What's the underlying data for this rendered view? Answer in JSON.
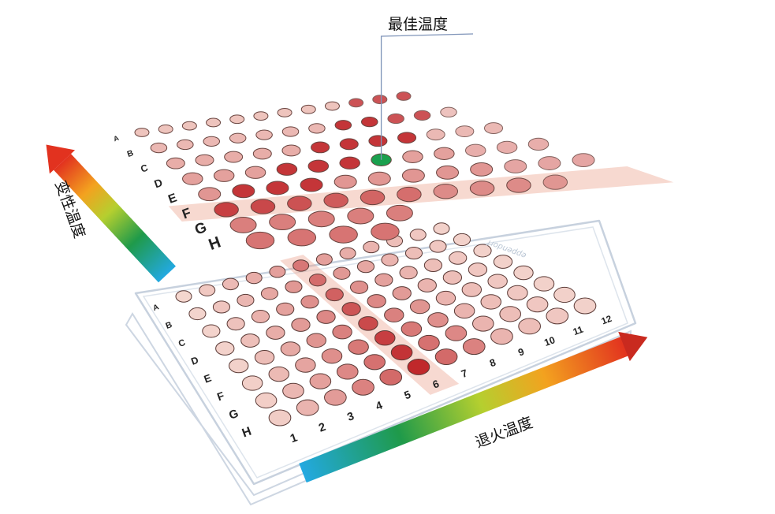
{
  "optimal_label": "最佳温度",
  "denaturation_label": "变性温度",
  "annealing_label": "退火温度",
  "top_plate": {
    "rows": [
      "A",
      "B",
      "C",
      "D",
      "E",
      "F",
      "G",
      "H"
    ]
  },
  "bottom_plate": {
    "rows": [
      "A",
      "B",
      "C",
      "D",
      "E",
      "F",
      "G",
      "H"
    ],
    "columns": [
      "1",
      "2",
      "3",
      "4",
      "5",
      "6",
      "7",
      "8",
      "9",
      "10",
      "11",
      "12"
    ],
    "brand": "eppendorf"
  }
}
